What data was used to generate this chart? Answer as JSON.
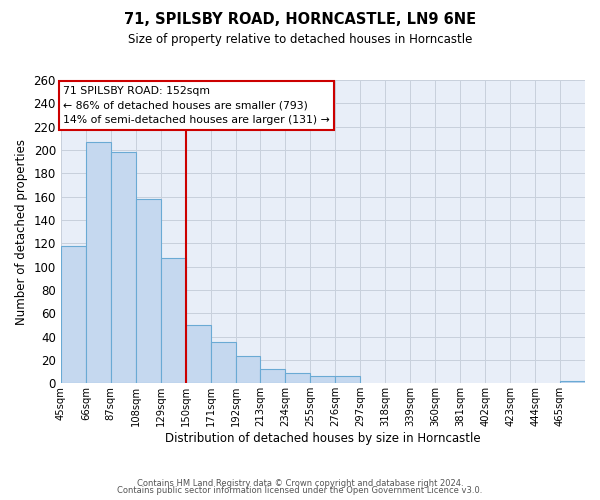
{
  "title": "71, SPILSBY ROAD, HORNCASTLE, LN9 6NE",
  "subtitle": "Size of property relative to detached houses in Horncastle",
  "xlabel": "Distribution of detached houses by size in Horncastle",
  "ylabel": "Number of detached properties",
  "footer_lines": [
    "Contains HM Land Registry data © Crown copyright and database right 2024.",
    "Contains public sector information licensed under the Open Government Licence v3.0."
  ],
  "bin_labels": [
    "45sqm",
    "66sqm",
    "87sqm",
    "108sqm",
    "129sqm",
    "150sqm",
    "171sqm",
    "192sqm",
    "213sqm",
    "234sqm",
    "255sqm",
    "276sqm",
    "297sqm",
    "318sqm",
    "339sqm",
    "360sqm",
    "381sqm",
    "402sqm",
    "423sqm",
    "444sqm",
    "465sqm"
  ],
  "bin_edges": [
    45,
    66,
    87,
    108,
    129,
    150,
    171,
    192,
    213,
    234,
    255,
    276,
    297,
    318,
    339,
    360,
    381,
    402,
    423,
    444,
    465
  ],
  "bar_heights": [
    118,
    207,
    198,
    158,
    107,
    50,
    35,
    23,
    12,
    9,
    6,
    6,
    0,
    0,
    0,
    0,
    0,
    0,
    0,
    0,
    2
  ],
  "bar_color": "#c5d8ef",
  "bar_edge_color": "#6aaad4",
  "background_color": "#e8eef8",
  "grid_color": "#c8d0dc",
  "property_line_x": 150,
  "vline_color": "#cc0000",
  "annotation_box_edge": "#cc0000",
  "annotation_line1": "71 SPILSBY ROAD: 152sqm",
  "annotation_line2": "← 86% of detached houses are smaller (793)",
  "annotation_line3": "14% of semi-detached houses are larger (131) →",
  "ylim": [
    0,
    260
  ],
  "yticks": [
    0,
    20,
    40,
    60,
    80,
    100,
    120,
    140,
    160,
    180,
    200,
    220,
    240,
    260
  ]
}
